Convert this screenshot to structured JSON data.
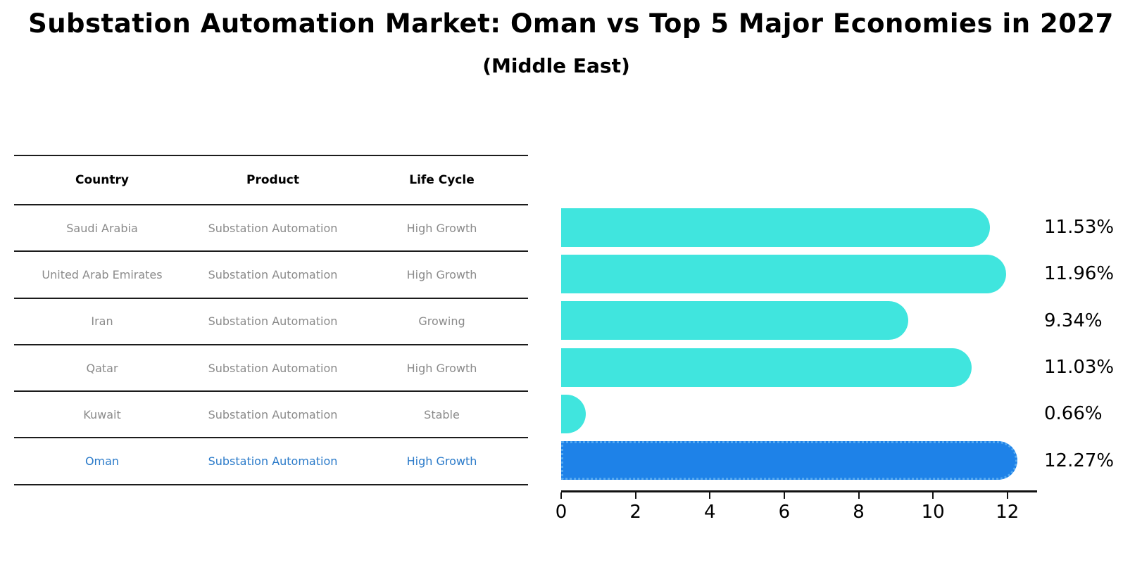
{
  "title": "Substation Automation Market: Oman vs Top 5 Major Economies in 2027",
  "subtitle": "(Middle East)",
  "colors": {
    "bar": "#40e5de",
    "highlight_bar": "#1e82e8",
    "highlight_bar_border": "#55a9f0",
    "highlight_text": "#2a7ac9",
    "cell_text": "#8a8a8a",
    "header_text": "#000000",
    "axis_text": "#000000"
  },
  "table": {
    "headers": [
      "Country",
      "Product",
      "Life Cycle"
    ],
    "rows": [
      {
        "country": "Saudi Arabia",
        "product": "Substation Automation",
        "life_cycle": "High Growth",
        "highlight": false
      },
      {
        "country": "United Arab Emirates",
        "product": "Substation Automation",
        "life_cycle": "High Growth",
        "highlight": false
      },
      {
        "country": "Iran",
        "product": "Substation Automation",
        "life_cycle": "Growing",
        "highlight": false
      },
      {
        "country": "Qatar",
        "product": "Substation Automation",
        "life_cycle": "High Growth",
        "highlight": false
      },
      {
        "country": "Kuwait",
        "product": "Substation Automation",
        "life_cycle": "Stable",
        "highlight": false
      },
      {
        "country": "Oman",
        "product": "Substation Automation",
        "life_cycle": "High Growth",
        "highlight": true
      }
    ]
  },
  "chart_data": {
    "type": "bar",
    "orientation": "horizontal",
    "title": "Substation Automation Market: Oman vs Top 5 Major Economies in 2027 (Middle East)",
    "categories": [
      "Saudi Arabia",
      "United Arab Emirates",
      "Iran",
      "Qatar",
      "Kuwait",
      "Oman"
    ],
    "values": [
      11.53,
      11.96,
      9.34,
      11.03,
      0.66,
      12.27
    ],
    "value_labels": [
      "11.53%",
      "11.96%",
      "9.34%",
      "11.03%",
      "0.66%",
      "12.27%"
    ],
    "unit": "%",
    "highlight_index": 5,
    "xticks": [
      0,
      2,
      4,
      6,
      8,
      10,
      12
    ],
    "xlim": [
      0,
      12.8
    ],
    "grid": false,
    "legend": "none"
  }
}
